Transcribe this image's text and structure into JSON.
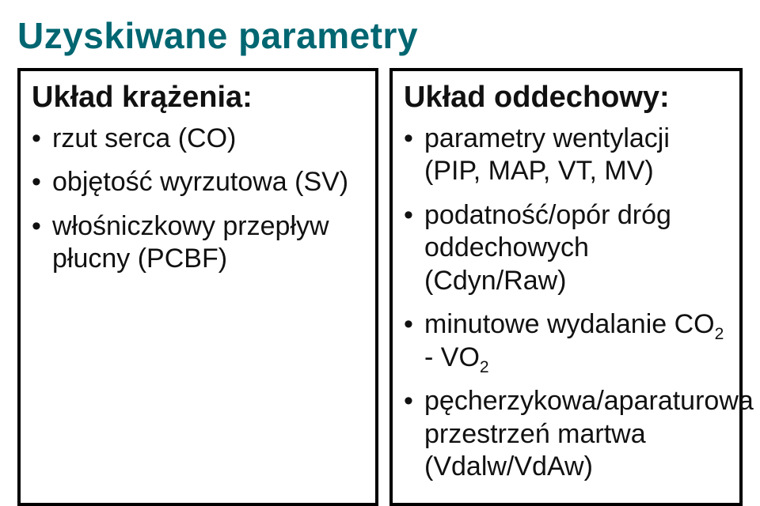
{
  "title": "Uzyskiwane parametry",
  "left": {
    "heading": "Układ krążenia:",
    "items": [
      "rzut serca (CO)",
      "objętość wyrzutowa (SV)",
      "włośniczkowy przepływ płucny (PCBF)"
    ]
  },
  "right": {
    "heading": "Układ oddechowy:",
    "items": [
      {
        "text": "parametry wentylacji (PIP, MAP, VT, MV)"
      },
      {
        "text": "podatność/opór dróg oddechowych (Cdyn/Raw)"
      },
      {
        "prefix": "minutowe wydalanie CO",
        "sub1": "2",
        "mid": " - VO",
        "sub2": "2"
      },
      {
        "text": "pęcherzykowa/aparaturowa przestrzeń martwa (Vdalw/VdAw)"
      }
    ]
  },
  "colors": {
    "title_color": "#006671",
    "text_color": "#111111",
    "border_color": "#000000",
    "background": "#ffffff"
  }
}
